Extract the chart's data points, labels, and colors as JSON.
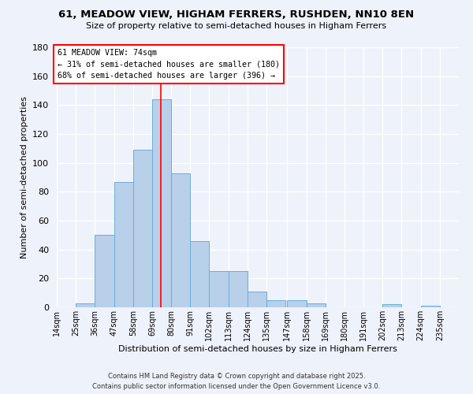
{
  "title1": "61, MEADOW VIEW, HIGHAM FERRERS, RUSHDEN, NN10 8EN",
  "title2": "Size of property relative to semi-detached houses in Higham Ferrers",
  "xlabel": "Distribution of semi-detached houses by size in Higham Ferrers",
  "ylabel": "Number of semi-detached properties",
  "bin_labels": [
    "14sqm",
    "25sqm",
    "36sqm",
    "47sqm",
    "58sqm",
    "69sqm",
    "80sqm",
    "91sqm",
    "102sqm",
    "113sqm",
    "124sqm",
    "135sqm",
    "147sqm",
    "158sqm",
    "169sqm",
    "180sqm",
    "191sqm",
    "202sqm",
    "213sqm",
    "224sqm",
    "235sqm"
  ],
  "bin_left_edges": [
    14,
    25,
    36,
    47,
    58,
    69,
    80,
    91,
    102,
    113,
    124,
    135,
    147,
    158,
    169,
    180,
    191,
    202,
    213,
    224
  ],
  "bin_width": 11,
  "bar_heights": [
    0,
    3,
    50,
    87,
    109,
    144,
    93,
    46,
    25,
    25,
    11,
    5,
    5,
    3,
    0,
    0,
    0,
    2,
    0,
    1
  ],
  "bar_color": "#b8d0ea",
  "bar_edge_color": "#6aaed6",
  "property_line_x": 74,
  "xlim_left": 14,
  "xlim_right": 246,
  "ylim": [
    0,
    180
  ],
  "yticks": [
    0,
    20,
    40,
    60,
    80,
    100,
    120,
    140,
    160,
    180
  ],
  "annotation_title": "61 MEADOW VIEW: 74sqm",
  "annotation_line1": "← 31% of semi-detached houses are smaller (180)",
  "annotation_line2": "68% of semi-detached houses are larger (396) →",
  "footer1": "Contains HM Land Registry data © Crown copyright and database right 2025.",
  "footer2": "Contains public sector information licensed under the Open Government Licence v3.0.",
  "bg_color": "#eef2fb",
  "grid_color": "#ffffff"
}
